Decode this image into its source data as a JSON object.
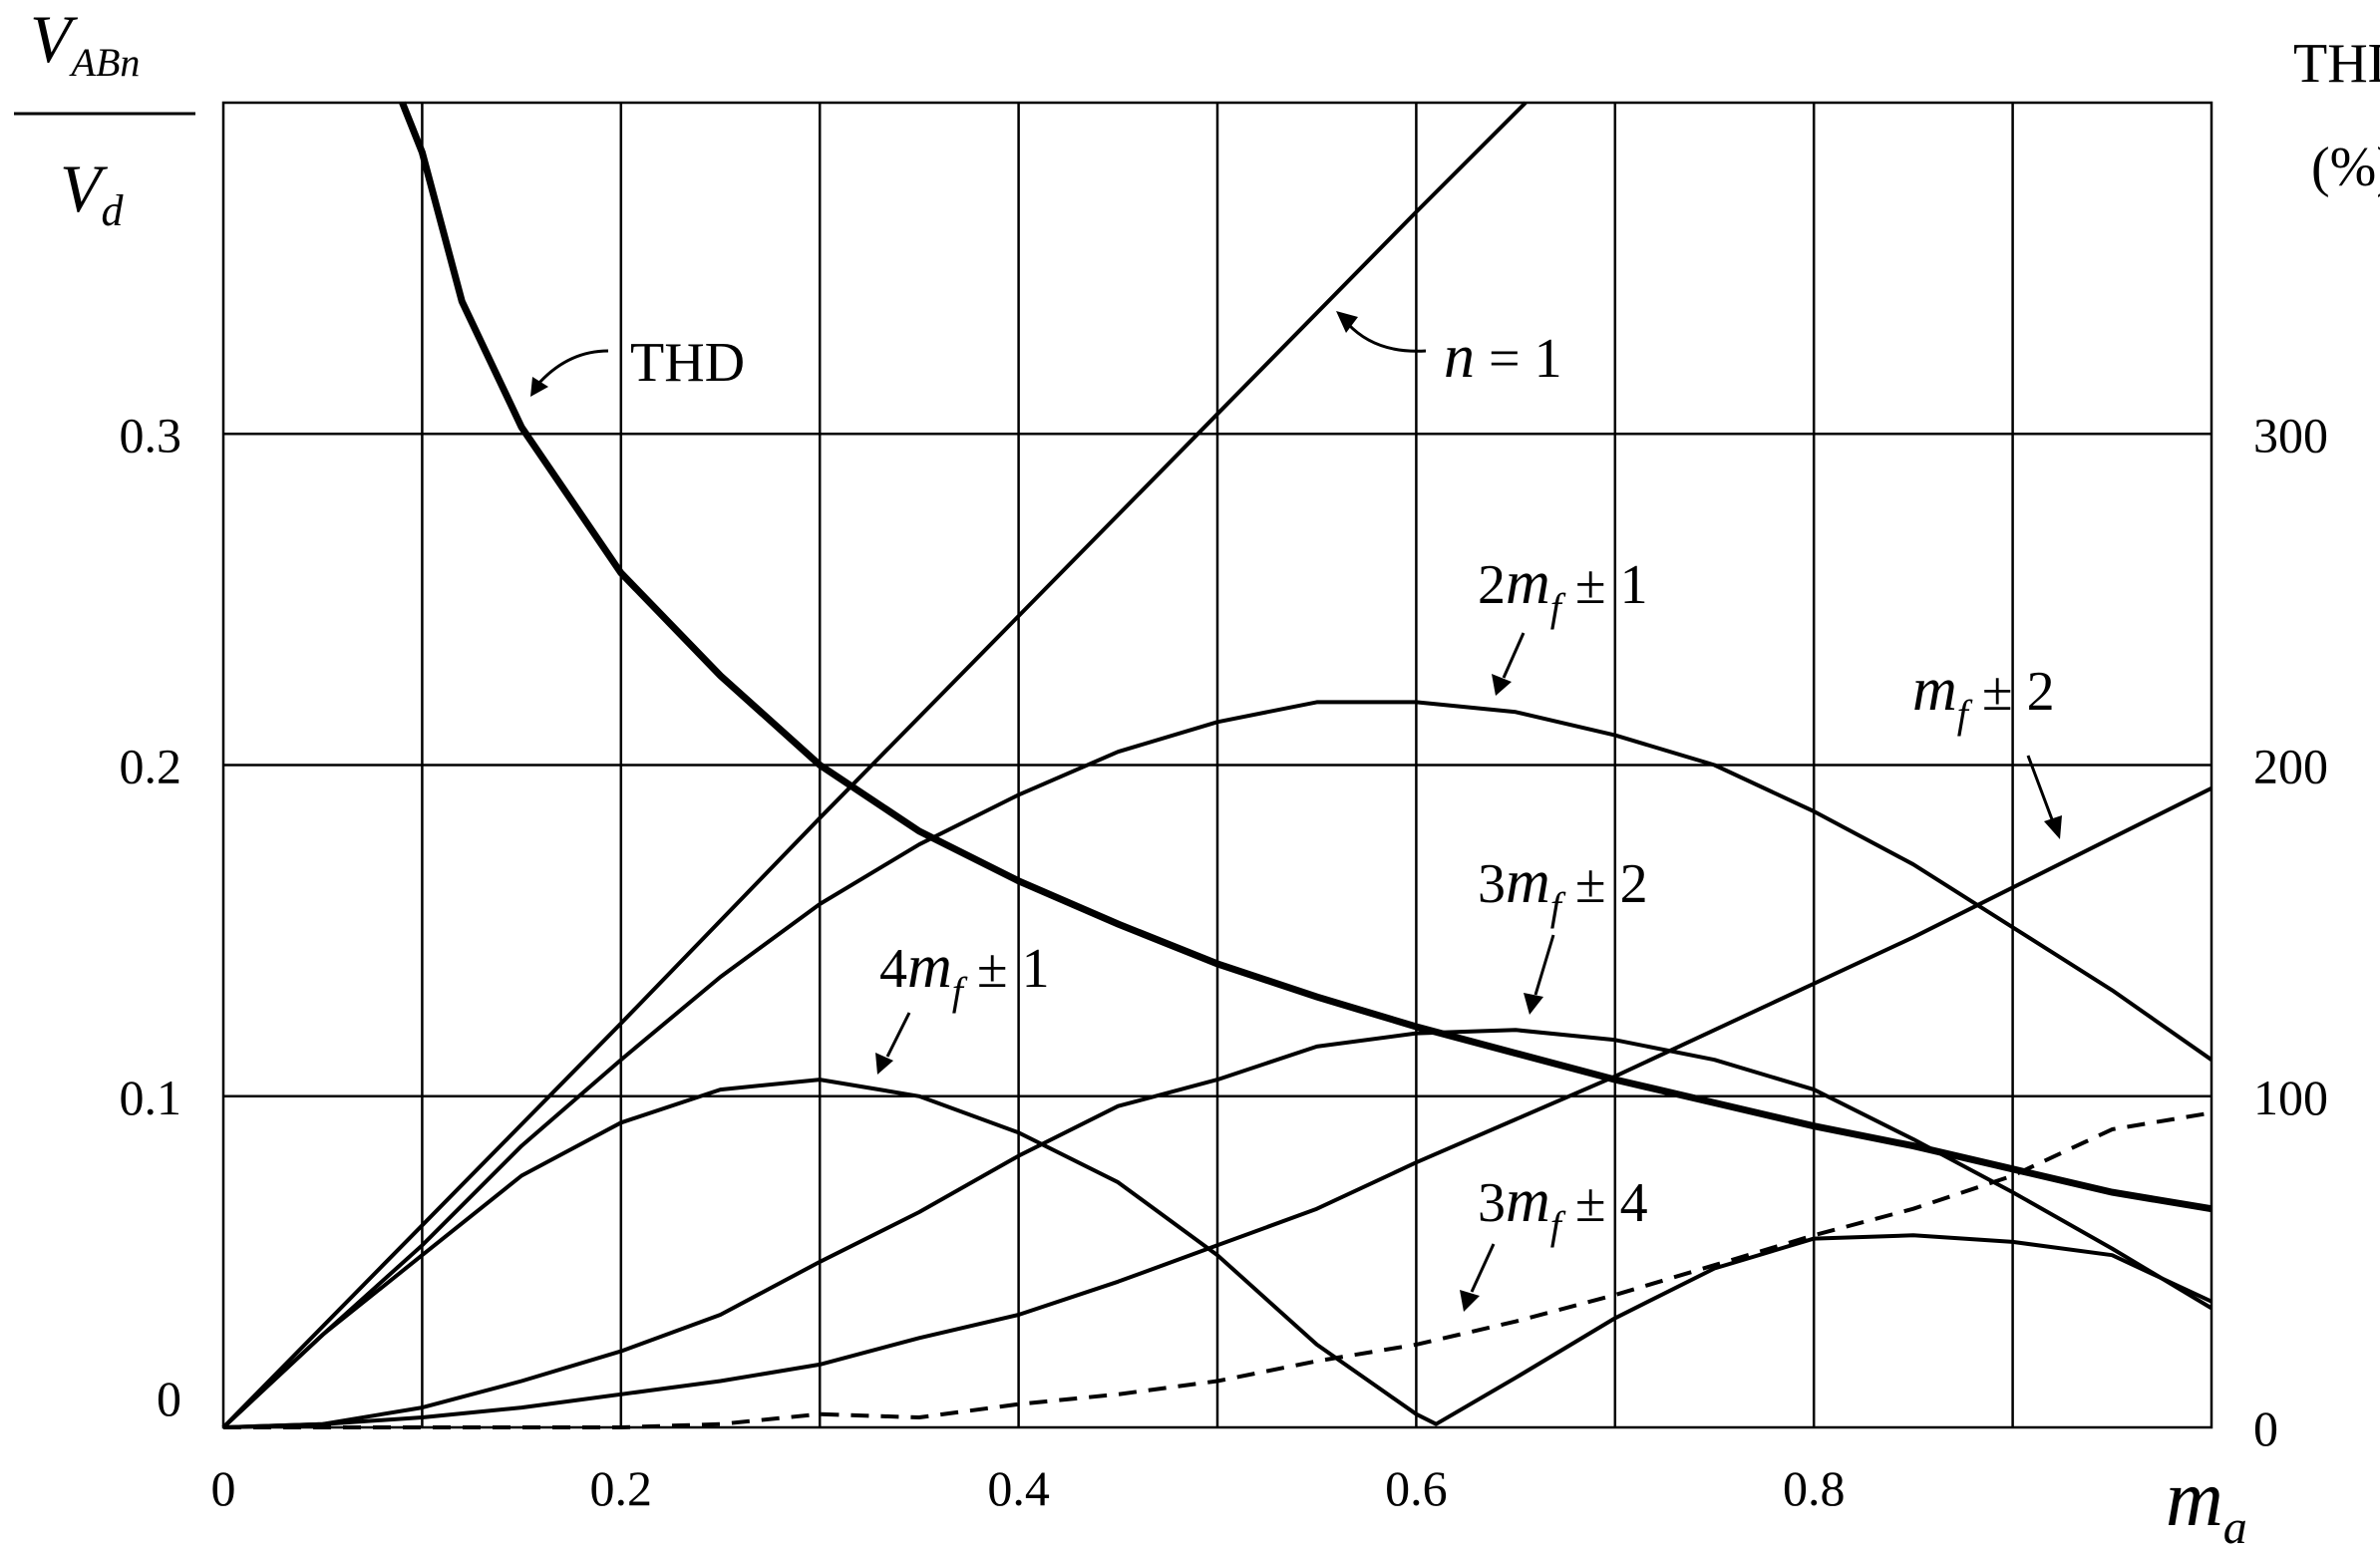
{
  "chart_data": {
    "type": "line",
    "xlabel": "m_a",
    "ylabel_left": "V_ABn / V_d",
    "ylabel_right": [
      "THD",
      "(%)"
    ],
    "xlim": [
      0,
      1
    ],
    "ylim_left": [
      0,
      0.4
    ],
    "ylim_right": [
      0,
      400
    ],
    "x_ticks": [
      "0",
      "0.2",
      "0.4",
      "0.6",
      "0.8"
    ],
    "y_left_ticks": [
      "0",
      "0.1",
      "0.2",
      "0.3"
    ],
    "y_right_ticks": [
      "0",
      "100",
      "200",
      "300"
    ],
    "grid": true,
    "series": [
      {
        "name": "n = 1",
        "axis": "left",
        "style": "solid",
        "x": [
          0,
          0.1,
          0.2,
          0.3,
          0.4,
          0.5,
          0.6,
          0.655
        ],
        "y": [
          0,
          0.061,
          0.122,
          0.184,
          0.245,
          0.306,
          0.367,
          0.4
        ]
      },
      {
        "name": "2m_f ± 1",
        "axis": "left",
        "style": "solid",
        "x": [
          0,
          0.05,
          0.1,
          0.15,
          0.2,
          0.25,
          0.3,
          0.35,
          0.4,
          0.45,
          0.5,
          0.55,
          0.6,
          0.65,
          0.7,
          0.75,
          0.8,
          0.85,
          0.9,
          0.95,
          1.0
        ],
        "y": [
          0,
          0.028,
          0.055,
          0.085,
          0.111,
          0.136,
          0.158,
          0.176,
          0.191,
          0.204,
          0.213,
          0.219,
          0.219,
          0.216,
          0.209,
          0.2,
          0.186,
          0.17,
          0.151,
          0.132,
          0.111
        ]
      },
      {
        "name": "m_f ± 2",
        "axis": "left",
        "style": "solid",
        "x": [
          0,
          0.05,
          0.1,
          0.15,
          0.2,
          0.25,
          0.3,
          0.35,
          0.4,
          0.45,
          0.5,
          0.55,
          0.6,
          0.65,
          0.7,
          0.75,
          0.8,
          0.85,
          0.9,
          0.95,
          1.0
        ],
        "y": [
          0,
          0.001,
          0.003,
          0.006,
          0.01,
          0.014,
          0.019,
          0.027,
          0.034,
          0.044,
          0.055,
          0.066,
          0.08,
          0.093,
          0.106,
          0.12,
          0.134,
          0.148,
          0.163,
          0.178,
          0.193
        ]
      },
      {
        "name": "3m_f ± 2",
        "axis": "left",
        "style": "solid",
        "x": [
          0,
          0.05,
          0.1,
          0.15,
          0.2,
          0.25,
          0.3,
          0.35,
          0.4,
          0.45,
          0.5,
          0.55,
          0.6,
          0.65,
          0.7,
          0.75,
          0.8,
          0.85,
          0.9,
          0.95,
          1.0
        ],
        "y": [
          0,
          0.001,
          0.006,
          0.014,
          0.023,
          0.034,
          0.05,
          0.065,
          0.082,
          0.097,
          0.105,
          0.115,
          0.119,
          0.12,
          0.117,
          0.111,
          0.102,
          0.087,
          0.071,
          0.054,
          0.036
        ]
      },
      {
        "name": "4m_f ± 1",
        "axis": "left",
        "style": "solid",
        "x": [
          0,
          0.05,
          0.1,
          0.15,
          0.2,
          0.25,
          0.3,
          0.35,
          0.4,
          0.45,
          0.5,
          0.55,
          0.6,
          0.61,
          0.65,
          0.7,
          0.75,
          0.8,
          0.85,
          0.9,
          0.95,
          1.0
        ],
        "y": [
          0,
          0.028,
          0.052,
          0.076,
          0.092,
          0.102,
          0.105,
          0.1,
          0.089,
          0.074,
          0.052,
          0.025,
          0.004,
          0.001,
          0.015,
          0.033,
          0.048,
          0.057,
          0.058,
          0.056,
          0.052,
          0.038
        ]
      },
      {
        "name": "3m_f ± 4",
        "axis": "left",
        "style": "dashed",
        "x": [
          0,
          0.1,
          0.2,
          0.25,
          0.3,
          0.35,
          0.4,
          0.45,
          0.5,
          0.55,
          0.6,
          0.65,
          0.7,
          0.75,
          0.8,
          0.85,
          0.9,
          0.95,
          1.0
        ],
        "y": [
          0,
          0,
          0,
          0.001,
          0.004,
          0.003,
          0.007,
          0.01,
          0.014,
          0.02,
          0.025,
          0.032,
          0.04,
          0.049,
          0.058,
          0.066,
          0.076,
          0.09,
          0.095
        ]
      },
      {
        "name": "THD",
        "axis": "right",
        "style": "thick",
        "x": [
          0.09,
          0.1,
          0.12,
          0.15,
          0.2,
          0.25,
          0.3,
          0.35,
          0.4,
          0.45,
          0.5,
          0.55,
          0.6,
          0.65,
          0.7,
          0.75,
          0.8,
          0.85,
          0.9,
          0.95,
          1.0
        ],
        "y": [
          400,
          385,
          340,
          302,
          258,
          227,
          200,
          180,
          165,
          152,
          140,
          130,
          121,
          113,
          105,
          98,
          91,
          85,
          78,
          71,
          66
        ]
      }
    ],
    "annotations": [
      {
        "text_parts": [
          "THD"
        ],
        "series": "THD"
      },
      {
        "text_parts": [
          "n",
          " = 1"
        ],
        "series": "n = 1"
      },
      {
        "text_parts": [
          "2",
          "m",
          "f",
          " ± 1"
        ],
        "series": "2m_f ± 1"
      },
      {
        "text_parts": [
          "m",
          "f",
          " ± 2"
        ],
        "series": "m_f ± 2"
      },
      {
        "text_parts": [
          "3",
          "m",
          "f",
          " ± 2"
        ],
        "series": "3m_f ± 2"
      },
      {
        "text_parts": [
          "4",
          "m",
          "f",
          " ± 1"
        ],
        "series": "4m_f ± 1"
      },
      {
        "text_parts": [
          "3",
          "m",
          "f",
          " ± 4"
        ],
        "series": "3m_f ± 4"
      }
    ],
    "axis_label_parts": {
      "y_left_num": [
        "V",
        "ABn"
      ],
      "y_left_den": [
        "V",
        "d"
      ],
      "x": [
        "m",
        "a"
      ]
    }
  }
}
